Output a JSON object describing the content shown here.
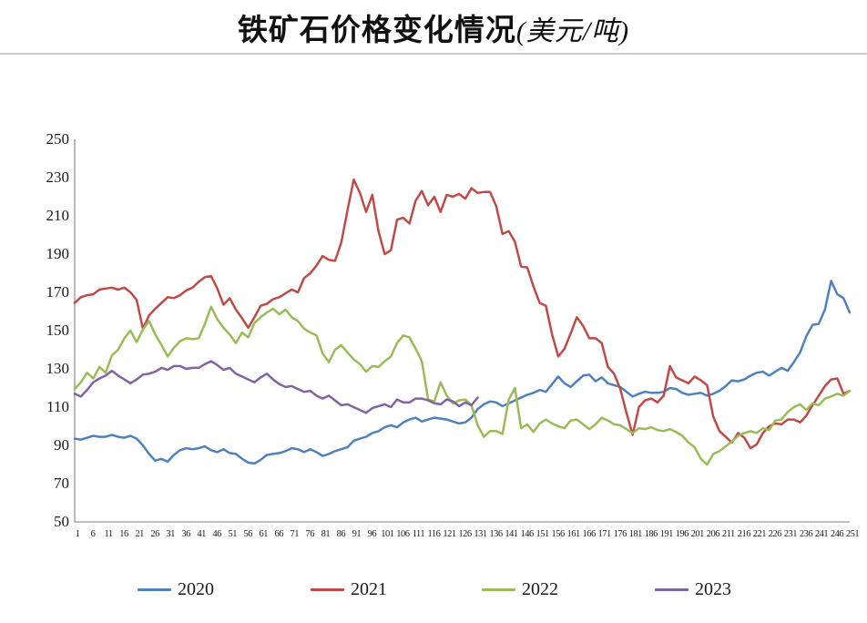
{
  "title": {
    "main": "铁矿石价格变化情况",
    "unit": "(美元/吨)"
  },
  "chart_data": {
    "type": "line",
    "title": "铁矿石价格变化情况(美元/吨)",
    "xlabel": "",
    "ylabel": "",
    "grid": false,
    "legend_position": "bottom",
    "x_axis": {
      "min": 1,
      "max": 251,
      "tick_labels": [
        1,
        6,
        11,
        16,
        21,
        26,
        31,
        36,
        41,
        46,
        51,
        56,
        61,
        66,
        71,
        76,
        81,
        86,
        91,
        96,
        101,
        106,
        111,
        116,
        121,
        126,
        131,
        136,
        141,
        146,
        151,
        156,
        161,
        166,
        171,
        176,
        181,
        186,
        191,
        196,
        201,
        206,
        211,
        216,
        221,
        226,
        231,
        236,
        241,
        246,
        251
      ]
    },
    "y_axis": {
      "min": 50,
      "max": 250,
      "ticks": [
        50,
        70,
        90,
        110,
        130,
        150,
        170,
        190,
        210,
        230,
        250
      ]
    },
    "axis_color": "#969696",
    "series": [
      {
        "name": "2020",
        "color": "#4f81bd",
        "x_start": 1,
        "x_step": 2,
        "values": [
          93.5,
          93,
          94,
          95,
          94.5,
          94.5,
          95.5,
          94.5,
          94,
          95,
          93.5,
          90,
          85.5,
          82,
          83,
          81.5,
          85,
          87.5,
          88.5,
          88,
          88.5,
          89.5,
          87.5,
          86.5,
          88,
          86,
          85.5,
          83,
          81,
          80.5,
          82.5,
          85,
          85.5,
          86,
          87,
          88.5,
          88,
          86.5,
          88,
          86.5,
          84.5,
          85.5,
          87,
          88,
          89,
          92.5,
          93.5,
          94.5,
          96.5,
          97.5,
          99.5,
          100.5,
          99.5,
          102,
          103.5,
          104.5,
          102.5,
          103.5,
          104.5,
          104,
          103.5,
          102.5,
          101.5,
          102,
          104.5,
          109,
          111.5,
          113,
          112.5,
          110.5,
          112,
          113.5,
          115,
          116.5,
          117.5,
          119,
          118,
          122,
          126,
          122.5,
          120.5,
          123.5,
          126.5,
          127,
          123.5,
          125.5,
          122.5,
          121.5,
          120.5,
          118,
          115.5,
          117,
          118,
          117.5,
          117.5,
          118,
          120,
          119.5,
          117.5,
          116.5,
          117,
          117.5,
          116,
          117,
          118.5,
          121,
          124,
          123.5,
          124.5,
          126.5,
          128,
          128.5,
          126.5,
          128.5,
          130.5,
          129,
          133.5,
          138.5,
          147,
          153,
          153.5,
          161,
          176,
          169,
          167,
          159.5
        ]
      },
      {
        "name": "2021",
        "color": "#be4b48",
        "x_start": 1,
        "x_step": 2,
        "values": [
          164.5,
          167.5,
          168.5,
          169,
          171.5,
          172,
          172.5,
          171.5,
          172.5,
          170,
          166,
          151,
          158,
          161.5,
          164.5,
          167.5,
          167,
          168.5,
          171,
          172.5,
          175.5,
          178,
          178.5,
          172,
          163.5,
          167,
          161,
          156.5,
          151.5,
          157,
          163,
          164,
          166.5,
          167.5,
          169.5,
          171.5,
          170,
          177.5,
          180,
          184,
          189,
          187,
          186.5,
          196,
          213,
          229,
          222,
          212,
          221,
          202,
          190,
          192,
          208,
          209,
          206,
          218,
          223,
          215.5,
          220,
          212,
          221,
          220,
          221.5,
          219,
          224.5,
          222,
          222.5,
          222.5,
          215,
          200.5,
          202,
          196.5,
          183.5,
          183,
          173,
          164.5,
          163,
          148,
          136.5,
          140.5,
          148.5,
          157,
          152.5,
          146,
          146,
          143.5,
          131,
          127.5,
          119.5,
          107,
          95.5,
          110,
          113.5,
          114.5,
          112.5,
          116,
          131.5,
          125.5,
          124,
          122.5,
          126,
          124,
          121.5,
          105,
          97.5,
          94.5,
          91.5,
          96.5,
          94,
          88.5,
          90.5,
          96.5,
          100,
          101.5,
          101,
          103.5,
          103.5,
          102,
          105.5,
          111,
          116,
          121,
          124.5,
          125,
          117,
          118.5
        ]
      },
      {
        "name": "2022",
        "color": "#9bbb59",
        "x_start": 1,
        "x_step": 2,
        "values": [
          119.5,
          123,
          128,
          125,
          131,
          128,
          137,
          140,
          146,
          150,
          144,
          150.5,
          155,
          148,
          142.5,
          136.5,
          141,
          144.5,
          146,
          145.5,
          146,
          153.5,
          162.5,
          156,
          151.5,
          148,
          143.5,
          149,
          146.5,
          154,
          157,
          159.5,
          161.5,
          158.5,
          161,
          157,
          155,
          151,
          149,
          147.5,
          138,
          133.5,
          140,
          142.5,
          138.5,
          135,
          132.5,
          128.5,
          131.5,
          131,
          134,
          136.5,
          143.5,
          147.5,
          146.5,
          140.5,
          134,
          114,
          113,
          123,
          116,
          112,
          113.5,
          114,
          111,
          100.5,
          94.5,
          97.5,
          97.5,
          96,
          114,
          120,
          99,
          101,
          97,
          101.5,
          103.5,
          101.5,
          100,
          99,
          103,
          103.5,
          101,
          98.5,
          101,
          104.5,
          103,
          101,
          100.5,
          98.5,
          96.5,
          99,
          98.5,
          99.5,
          98,
          97.5,
          98.5,
          97,
          95,
          91.5,
          89,
          83,
          80,
          85.5,
          87,
          89.5,
          92,
          95,
          96.5,
          97.5,
          96.5,
          99,
          98,
          103,
          103.5,
          107.5,
          110,
          111.5,
          108.5,
          112,
          111,
          114.5,
          115.5,
          117,
          116,
          118.5
        ]
      },
      {
        "name": "2023",
        "color": "#8064a2",
        "x_start": 1,
        "x_step": 2,
        "values": [
          117,
          115.5,
          119,
          123,
          125,
          126.5,
          129,
          126.5,
          124.5,
          122.5,
          124.5,
          127,
          127.5,
          128.5,
          130.5,
          129.5,
          131.5,
          131.5,
          130,
          130.5,
          130.5,
          132.5,
          134,
          132,
          129.5,
          130.5,
          127.5,
          126,
          124.5,
          123,
          125.5,
          127.5,
          124.5,
          122,
          120.5,
          121,
          119.5,
          118,
          118.5,
          116,
          114.5,
          116,
          113.5,
          111,
          111.5,
          110,
          108.5,
          107,
          109.5,
          110.5,
          111.5,
          110,
          114,
          112.5,
          112.5,
          114.5,
          114.5,
          113.5,
          112,
          111.5,
          114,
          113,
          110.5,
          112.5,
          111,
          115
        ]
      }
    ]
  },
  "legend": {
    "items": [
      {
        "label": "2020"
      },
      {
        "label": "2021"
      },
      {
        "label": "2022"
      },
      {
        "label": "2023"
      }
    ]
  }
}
